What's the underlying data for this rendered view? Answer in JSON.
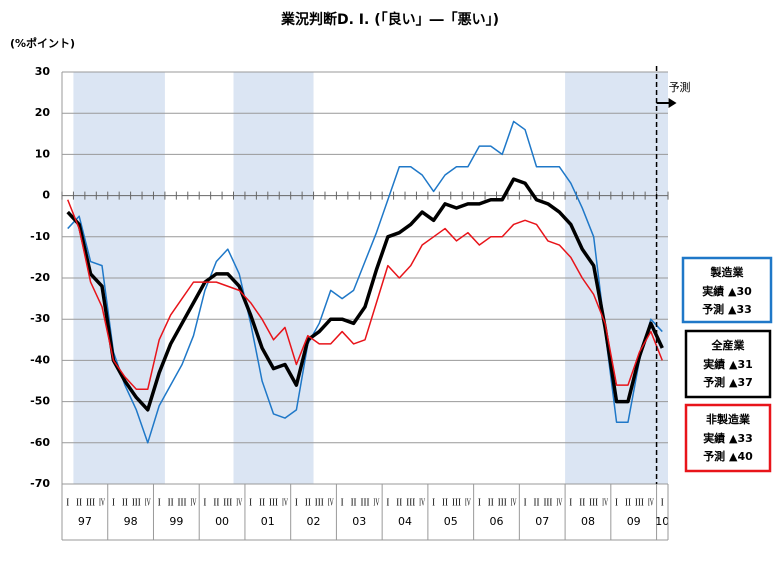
{
  "chart_data": {
    "type": "line",
    "title": "業況判断D. I. (「良い」―「悪い」)",
    "ylabel": "(%ポイント)",
    "categories": [
      "I",
      "II",
      "III",
      "IV",
      "I",
      "II",
      "III",
      "IV",
      "I",
      "II",
      "III",
      "IV",
      "I",
      "II",
      "III",
      "IV",
      "I",
      "II",
      "III",
      "IV",
      "I",
      "II",
      "III",
      "IV",
      "I",
      "II",
      "III",
      "IV",
      "I",
      "II",
      "III",
      "IV",
      "I",
      "II",
      "III",
      "IV",
      "I",
      "II",
      "III",
      "IV",
      "I",
      "II",
      "III",
      "IV",
      "I",
      "II",
      "III",
      "IV",
      "I",
      "II",
      "III",
      "IV",
      "I"
    ],
    "years": [
      "97",
      "98",
      "99",
      "00",
      "01",
      "02",
      "03",
      "04",
      "05",
      "06",
      "07",
      "08",
      "09",
      "10"
    ],
    "ylim": [
      -70,
      30
    ],
    "yticks": [
      30,
      20,
      10,
      0,
      -10,
      -20,
      -30,
      -40,
      -50,
      -60,
      -70
    ],
    "grid": true,
    "shaded_ranges": [
      [
        1,
        8
      ],
      [
        15,
        21
      ],
      [
        44,
        52
      ]
    ],
    "forecast_start": 52,
    "forecast_label": "予測",
    "series": [
      {
        "name": "製造業",
        "color": "#1f78c8",
        "notes": [
          "実績 ▲30",
          "予測 ▲33"
        ],
        "values": [
          -8,
          -5,
          -16,
          -17,
          -38,
          -46,
          -52,
          -60,
          -51,
          -46,
          -41,
          -34,
          -23,
          -16,
          -13,
          -19,
          -31,
          -45,
          -53,
          -54,
          -52,
          -36,
          -31,
          -23,
          -25,
          -23,
          -16,
          -9,
          -1,
          7,
          7,
          5,
          1,
          5,
          7,
          7,
          12,
          12,
          10,
          18,
          16,
          7,
          7,
          7,
          3,
          -3,
          -10,
          -33,
          -55,
          -55,
          -40,
          -30,
          -33
        ]
      },
      {
        "name": "全産業",
        "color": "#000000",
        "notes": [
          "実績 ▲31",
          "予測 ▲37"
        ],
        "values": [
          -4,
          -7,
          -19,
          -22,
          -40,
          -45,
          -49,
          -52,
          -43,
          -36,
          -31,
          -26,
          -21,
          -19,
          -19,
          -22,
          -29,
          -37,
          -42,
          -41,
          -46,
          -35,
          -33,
          -30,
          -30,
          -31,
          -27,
          -18,
          -10,
          -9,
          -7,
          -4,
          -6,
          -2,
          -3,
          -2,
          -2,
          -1,
          -1,
          4,
          3,
          -1,
          -2,
          -4,
          -7,
          -13,
          -17,
          -32,
          -50,
          -50,
          -39,
          -31,
          -37
        ]
      },
      {
        "name": "非製造業",
        "color": "#e8141a",
        "notes": [
          "実績 ▲33",
          "予測 ▲40"
        ],
        "values": [
          -1,
          -8,
          -21,
          -27,
          -40,
          -44,
          -47,
          -47,
          -35,
          -29,
          -25,
          -21,
          -21,
          -21,
          -22,
          -23,
          -26,
          -30,
          -35,
          -32,
          -41,
          -34,
          -36,
          -36,
          -33,
          -36,
          -35,
          -26,
          -17,
          -20,
          -17,
          -12,
          -10,
          -8,
          -11,
          -9,
          -12,
          -10,
          -10,
          -7,
          -6,
          -7,
          -11,
          -12,
          -15,
          -20,
          -24,
          -31,
          -46,
          -46,
          -38,
          -33,
          -40
        ]
      }
    ]
  }
}
